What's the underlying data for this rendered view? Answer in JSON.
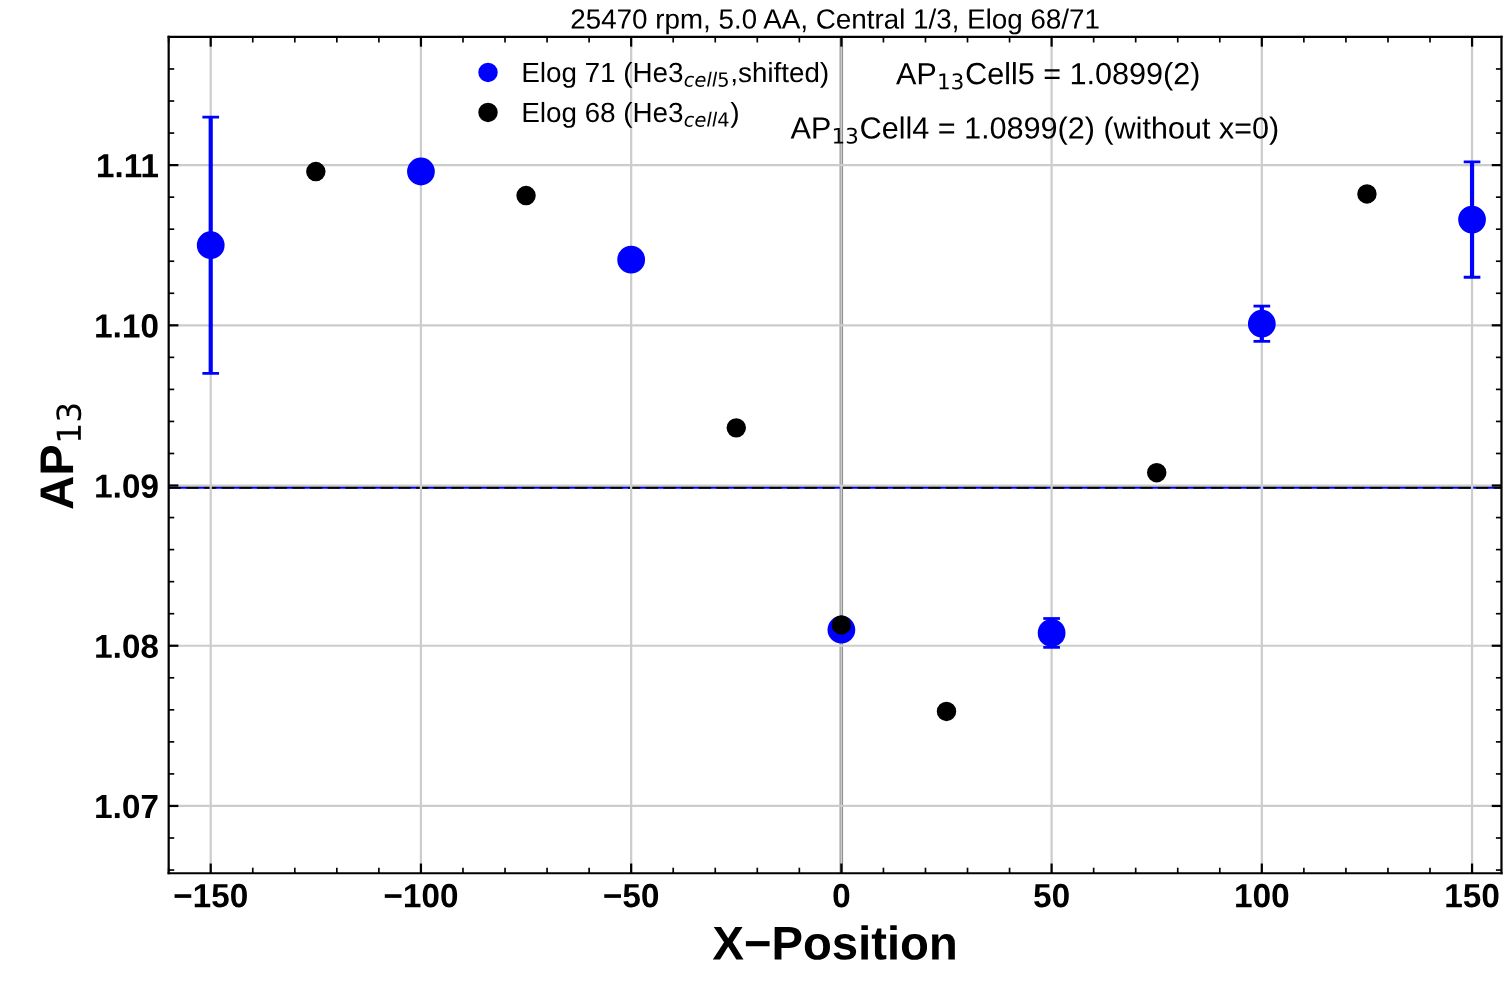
{
  "chart_data": {
    "type": "scatter",
    "title": "25470 rpm, 5.0 AA, Central 1/3, Elog 68/71",
    "xlabel": "X−Position",
    "ylabel": "AP$_{13}$",
    "series": [
      {
        "name": "Elog 71 (He3$_{cell5}$,shifted)",
        "color": "#0000ff",
        "x": [
          -150,
          -100,
          -50,
          0,
          50,
          100,
          150
        ],
        "values": [
          1.105,
          1.1096,
          1.1041,
          1.081,
          1.0808,
          1.1001,
          1.1066
        ],
        "errors": [
          0.008,
          null,
          null,
          null,
          0.0009,
          0.0011,
          0.0036
        ]
      },
      {
        "name": "Elog 68 (He3$_{cell4}$)",
        "color": "#000000",
        "x": [
          -125,
          -75,
          -25,
          0,
          25,
          75,
          125
        ],
        "values": [
          1.1096,
          1.1081,
          1.0936,
          1.0813,
          1.0759,
          1.0908,
          1.1082
        ],
        "errors": [
          null,
          null,
          null,
          null,
          null,
          null,
          null
        ]
      }
    ],
    "annotations": [
      "AP$_{13}$Cell5 = 1.0899(2)",
      "AP$_{13}$Cell4 = 1.0899(2) (without x=0)"
    ],
    "ref_lines": [
      {
        "axis": "y",
        "value": 1.0899,
        "color": "#0000ff",
        "line_style": "solid"
      },
      {
        "axis": "y",
        "value": 1.0899,
        "color": "#000000",
        "line_style": "dashed"
      },
      {
        "axis": "x",
        "value": 0,
        "color": "#555555",
        "line_style": "solid"
      }
    ],
    "xlim": [
      -160,
      157
    ],
    "ylim": [
      1.0658,
      1.118
    ],
    "xticks": [
      {
        "value": -150,
        "label": "−150"
      },
      {
        "value": -100,
        "label": "−100"
      },
      {
        "value": -50,
        "label": "−50"
      },
      0,
      50,
      100,
      150
    ],
    "yticks": [
      {
        "value": 1.07,
        "label": "1.07"
      },
      {
        "value": 1.08,
        "label": "1.08"
      },
      {
        "value": 1.09,
        "label": "1.09"
      },
      {
        "value": 1.1,
        "label": "1.10"
      },
      {
        "value": 1.11,
        "label": "1.11"
      }
    ],
    "grid": true,
    "legend": "top left",
    "marker": "circle"
  }
}
